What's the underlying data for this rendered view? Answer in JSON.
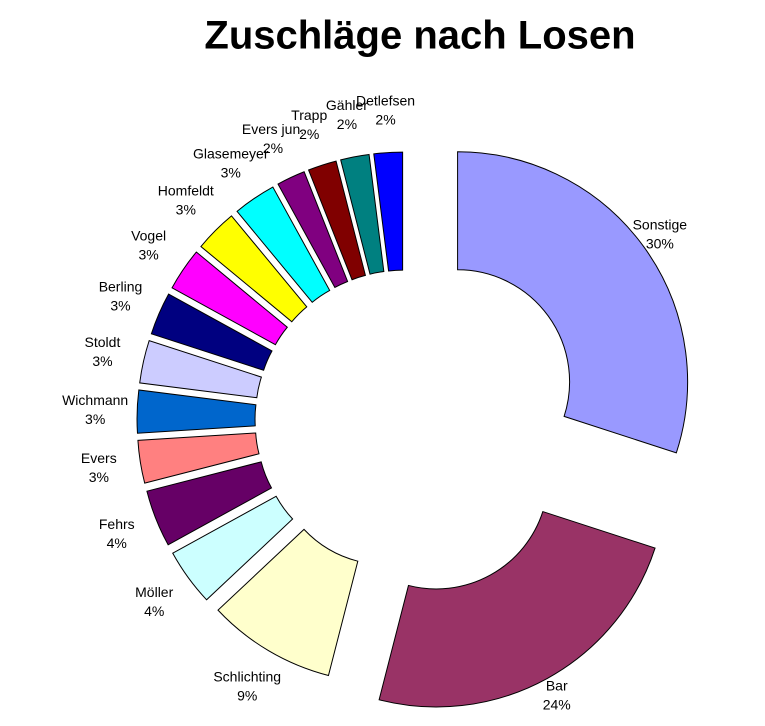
{
  "chart_data": {
    "type": "donut",
    "title": "Zuschläge nach Losen",
    "categories": [
      "Sonstige",
      "Bar",
      "Schlichting",
      "Möller",
      "Fehrs",
      "Evers",
      "Wichmann",
      "Stoldt",
      "Berling",
      "Vogel",
      "Homfeldt",
      "Glasemeyer",
      "Evers jun.",
      "Trapp",
      "Gähler",
      "Detlefsen"
    ],
    "values": [
      30,
      24,
      9,
      4,
      4,
      3,
      3,
      3,
      3,
      3,
      3,
      3,
      2,
      2,
      2,
      2
    ],
    "value_labels": [
      "30%",
      "24%",
      "9%",
      "4%",
      "4%",
      "3%",
      "3%",
      "3%",
      "3%",
      "3%",
      "3%",
      "3%",
      "2%",
      "2%",
      "2%",
      "2%"
    ],
    "colors": [
      "#9999ff",
      "#993366",
      "#ffffcc",
      "#ccffff",
      "#660066",
      "#ff8080",
      "#0066cc",
      "#ccccff",
      "#000080",
      "#ff00ff",
      "#ffff00",
      "#00ffff",
      "#800080",
      "#800000",
      "#008080",
      "#0000ff"
    ]
  }
}
